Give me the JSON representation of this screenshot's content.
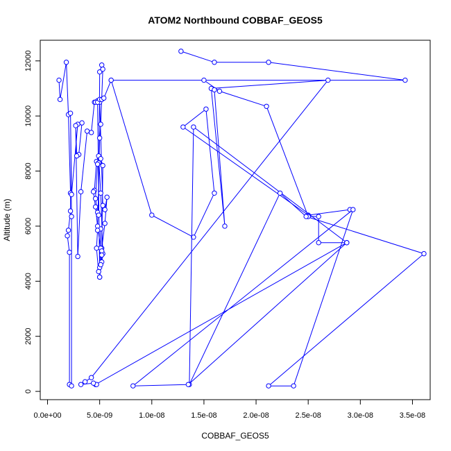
{
  "chart_data": {
    "type": "line",
    "title": "ATOM2 Northbound COBBAF_GEOS5",
    "xlabel": "COBBAF_GEOS5",
    "ylabel": "Altitude (m)",
    "xlim": [
      -7e-10,
      3.67e-08
    ],
    "ylim": [
      -300,
      12750
    ],
    "x_ticks": [
      0,
      5e-09,
      1e-08,
      1.5e-08,
      2e-08,
      2.5e-08,
      3e-08,
      3.5e-08
    ],
    "x_tick_labels": [
      "0.0e+00",
      "5.0e-09",
      "1.0e-08",
      "1.5e-08",
      "2.0e-08",
      "2.5e-08",
      "3.0e-08",
      "3.5e-08"
    ],
    "y_ticks": [
      0,
      2000,
      4000,
      6000,
      8000,
      10000,
      12000
    ],
    "y_tick_labels": [
      "0",
      "2000",
      "4000",
      "6000",
      "8000",
      "10000",
      "12000"
    ],
    "grid": false,
    "marker": "open-circle",
    "color": "#0000ff",
    "series": [
      {
        "x": [
          1.1e-09,
          1.2e-09,
          1.8e-09,
          2e-09,
          2.2e-09,
          2.2e-09,
          2e-09,
          1.9e-09,
          2.1e-09,
          2.1e-09,
          2.3e-09,
          2.3e-09,
          2.2e-09,
          2.3e-09,
          2.9e-09,
          3.3e-09,
          3e-09,
          2.8e-09,
          2.7e-09,
          2.9e-09,
          3.2e-09,
          3.8e-09,
          4.2e-09,
          4.5e-09,
          4.8e-09,
          5e-09,
          5.3e-09,
          5.5e-09,
          5.7e-09,
          5.5e-09,
          5.2e-09,
          5e-09,
          5.1e-09,
          5e-09,
          5.2e-09,
          5.3e-09,
          5.1e-09,
          4.9e-09,
          4.7e-09,
          4.5e-09,
          4.4e-09,
          4.6e-09,
          4.8e-09,
          5.1e-09,
          5.2e-09,
          5.3e-09,
          5.1e-09,
          4.9e-09,
          4.8e-09,
          4.6e-09,
          4.8e-09,
          4.9e-09,
          5e-09,
          5.2e-09,
          5.3e-09,
          5.1e-09,
          5e-09,
          4.8e-09,
          4.7e-09,
          4.9e-09,
          5.1e-09,
          5.2e-09,
          5e-09,
          4.8e-09,
          4.6e-09,
          4.8e-09,
          5e-09,
          5.2e-09,
          5.4e-09,
          6.1e-09,
          1e-08,
          1.4e-08,
          1.6e-08,
          1.52e-08,
          1.3e-08,
          2.5e-08,
          2.9e-08
        ],
        "y": [
          11300,
          10600,
          11950,
          10050,
          7200,
          6550,
          5850,
          5650,
          5050,
          250,
          200,
          6350,
          10100,
          7150,
          9700,
          9750,
          8600,
          8550,
          9650,
          4900,
          7250,
          9450,
          9400,
          10500,
          10550,
          10500,
          6750,
          6600,
          7050,
          6100,
          5200,
          4150,
          5900,
          4500,
          4700,
          5000,
          7200,
          8550,
          8350,
          7300,
          7250,
          6700,
          6000,
          5200,
          5100,
          8200,
          8450,
          8300,
          8250,
          7000,
          6500,
          6400,
          11600,
          11850,
          11700,
          9700,
          9200,
          5850,
          5200,
          4350,
          4600,
          4950,
          4150,
          10550,
          10500,
          10500,
          10600,
          10600,
          10650,
          11300,
          6400,
          5600,
          7200,
          10250,
          9600,
          6400,
          6600
        ]
      },
      {
        "x": [
          1.28e-08,
          1.6e-08,
          2.12e-08,
          3.43e-08,
          6.1e-09,
          1.5e-08,
          1.65e-08,
          2.1e-08,
          2.5e-08,
          2.6e-08,
          2.6e-08,
          2.87e-08,
          1.4e-08,
          1.36e-08,
          2.23e-08,
          2.48e-08,
          3.61e-08,
          2.12e-08,
          2.36e-08,
          2.93e-08,
          8.2e-09,
          1.35e-08,
          2.87e-08,
          4.6e-09,
          4.7e-09,
          4.4e-09,
          3.2e-09,
          3.6e-09,
          4.2e-09,
          2.69e-08,
          1.57e-08,
          1.7e-08,
          1.6e-08
        ],
        "y": [
          12350,
          11950,
          11950,
          11300,
          11300,
          11300,
          10900,
          10350,
          6350,
          6350,
          5400,
          5400,
          9600,
          250,
          7200,
          6350,
          5000,
          200,
          200,
          6600,
          200,
          250,
          5400,
          250,
          250,
          300,
          250,
          350,
          500,
          11300,
          11000,
          6000,
          10950
        ]
      }
    ]
  }
}
